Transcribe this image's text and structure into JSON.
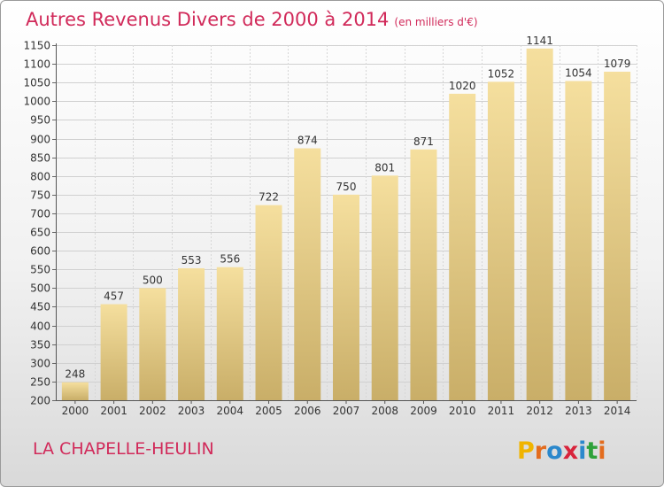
{
  "chart_data": {
    "type": "bar",
    "title": "Autres Revenus Divers de 2000 à 2014",
    "unit": "(en milliers d'€)",
    "categories": [
      "2000",
      "2001",
      "2002",
      "2003",
      "2004",
      "2005",
      "2006",
      "2007",
      "2008",
      "2009",
      "2010",
      "2011",
      "2012",
      "2013",
      "2014"
    ],
    "values": [
      248,
      457,
      500,
      553,
      556,
      722,
      874,
      750,
      801,
      871,
      1020,
      1052,
      1141,
      1054,
      1079
    ],
    "ylim": [
      200,
      1150
    ],
    "yticks": [
      200,
      250,
      300,
      350,
      400,
      450,
      500,
      550,
      600,
      650,
      700,
      750,
      800,
      850,
      900,
      950,
      1000,
      1050,
      1100,
      1150
    ],
    "grid": true,
    "bar_color": "#f3dc9a"
  },
  "footer": {
    "commune": "LA CHAPELLE-HEULIN",
    "logo_letters": [
      "P",
      "r",
      "o",
      "x",
      "i",
      "t",
      "i"
    ],
    "logo_colors": [
      "#f0b400",
      "#e36c1e",
      "#2b88cc",
      "#d8243c",
      "#2b88cc",
      "#2fa13a",
      "#e36c1e"
    ]
  }
}
